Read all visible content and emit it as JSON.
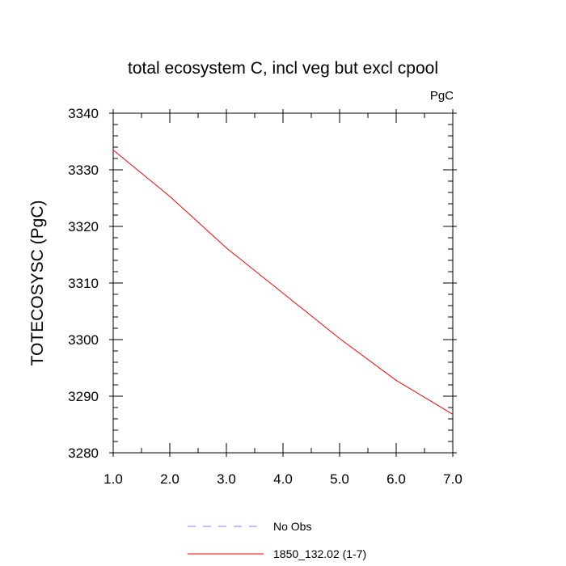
{
  "chart_data": {
    "type": "line",
    "title": "total ecosystem C, incl veg but excl cpool",
    "units_label": "PgC",
    "xlabel": "",
    "ylabel": "TOTECOSYSC  (PgC)",
    "xlim": [
      1.0,
      7.0
    ],
    "ylim": [
      3280,
      3340
    ],
    "x_ticks": [
      "1.0",
      "2.0",
      "3.0",
      "4.0",
      "5.0",
      "6.0",
      "7.0"
    ],
    "y_ticks": [
      "3280",
      "3290",
      "3300",
      "3310",
      "3320",
      "3330",
      "3340"
    ],
    "x": [
      1,
      2,
      3,
      4,
      5,
      6,
      7
    ],
    "series": [
      {
        "name": "1850_132.02 (1-7)",
        "color": "#ff0000",
        "style": "solid",
        "values": [
          3333.5,
          3325.3,
          3316.2,
          3308.2,
          3300.2,
          3292.8,
          3286.8
        ]
      }
    ],
    "legend": [
      {
        "label": "No Obs",
        "color": "#8080ff",
        "style": "dashed"
      },
      {
        "label": "1850_132.02 (1-7)",
        "color": "#ff0000",
        "style": "solid"
      }
    ],
    "legend_position": "bottom-center",
    "grid": false
  }
}
